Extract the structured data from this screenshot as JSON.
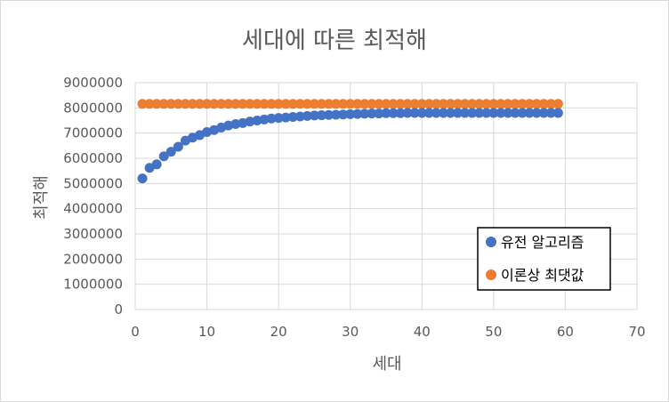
{
  "chart_data": {
    "type": "scatter",
    "title": "세대에 따른 최적해",
    "xlabel": "세대",
    "ylabel": "최적해",
    "xlim": [
      0,
      70
    ],
    "ylim": [
      0,
      9000000
    ],
    "x_ticks": [
      "0",
      "10",
      "20",
      "30",
      "40",
      "50",
      "60",
      "70"
    ],
    "y_ticks": [
      "0",
      "1000000",
      "2000000",
      "3000000",
      "4000000",
      "5000000",
      "6000000",
      "7000000",
      "8000000",
      "9000000"
    ],
    "grid": true,
    "legend_position": "bottom-right",
    "series": [
      {
        "name": "유전 알고리즘",
        "color": "#4472C4",
        "x": [
          1,
          2,
          3,
          4,
          5,
          6,
          7,
          8,
          9,
          10,
          11,
          12,
          13,
          14,
          15,
          16,
          17,
          18,
          19,
          20,
          21,
          22,
          23,
          24,
          25,
          26,
          27,
          28,
          29,
          30,
          31,
          32,
          33,
          34,
          35,
          36,
          37,
          38,
          39,
          40,
          41,
          42,
          43,
          44,
          45,
          46,
          47,
          48,
          49,
          50,
          51,
          52,
          53,
          54,
          55,
          56,
          57,
          58,
          59
        ],
        "y": [
          5200000,
          5620000,
          5760000,
          6080000,
          6260000,
          6460000,
          6700000,
          6820000,
          6920000,
          7040000,
          7120000,
          7220000,
          7300000,
          7360000,
          7400000,
          7460000,
          7500000,
          7540000,
          7580000,
          7600000,
          7620000,
          7640000,
          7660000,
          7680000,
          7700000,
          7710000,
          7720000,
          7730000,
          7740000,
          7750000,
          7760000,
          7770000,
          7780000,
          7780000,
          7790000,
          7790000,
          7790000,
          7800000,
          7800000,
          7800000,
          7800000,
          7800000,
          7800000,
          7800000,
          7800000,
          7800000,
          7800000,
          7800000,
          7800000,
          7800000,
          7800000,
          7800000,
          7800000,
          7800000,
          7800000,
          7800000,
          7800000,
          7800000,
          7800000
        ]
      },
      {
        "name": "이론상 최댓값",
        "color": "#ED7D31",
        "x": [
          1,
          2,
          3,
          4,
          5,
          6,
          7,
          8,
          9,
          10,
          11,
          12,
          13,
          14,
          15,
          16,
          17,
          18,
          19,
          20,
          21,
          22,
          23,
          24,
          25,
          26,
          27,
          28,
          29,
          30,
          31,
          32,
          33,
          34,
          35,
          36,
          37,
          38,
          39,
          40,
          41,
          42,
          43,
          44,
          45,
          46,
          47,
          48,
          49,
          50,
          51,
          52,
          53,
          54,
          55,
          56,
          57,
          58,
          59
        ],
        "y": [
          8160000,
          8160000,
          8160000,
          8160000,
          8160000,
          8160000,
          8160000,
          8160000,
          8160000,
          8160000,
          8160000,
          8160000,
          8160000,
          8160000,
          8160000,
          8160000,
          8160000,
          8160000,
          8160000,
          8160000,
          8160000,
          8160000,
          8160000,
          8160000,
          8160000,
          8160000,
          8160000,
          8160000,
          8160000,
          8160000,
          8160000,
          8160000,
          8160000,
          8160000,
          8160000,
          8160000,
          8160000,
          8160000,
          8160000,
          8160000,
          8160000,
          8160000,
          8160000,
          8160000,
          8160000,
          8160000,
          8160000,
          8160000,
          8160000,
          8160000,
          8160000,
          8160000,
          8160000,
          8160000,
          8160000,
          8160000,
          8160000,
          8160000,
          8160000
        ]
      }
    ]
  }
}
